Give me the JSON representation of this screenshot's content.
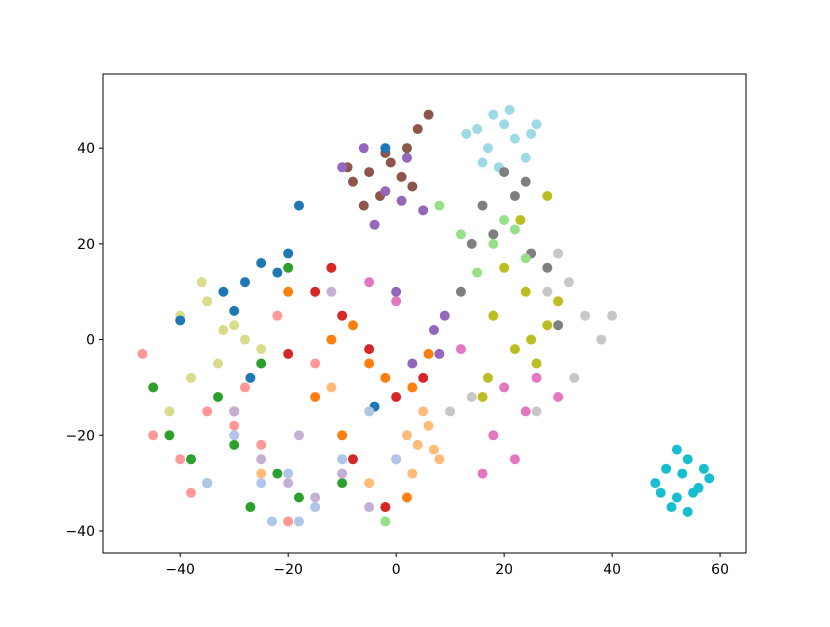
{
  "chart_data": {
    "type": "scatter",
    "xlim": [
      -54.3,
      64.8
    ],
    "ylim": [
      -44.6,
      55.5
    ],
    "xticks": [
      {
        "value": -40,
        "label": "−40"
      },
      {
        "value": -20,
        "label": "−20"
      },
      0,
      20,
      40,
      60
    ],
    "yticks": [
      {
        "value": -40,
        "label": "−40"
      },
      {
        "value": -20,
        "label": "−20"
      },
      0,
      20,
      40
    ],
    "series": [
      {
        "color": "#8c564b",
        "x": [
          -8,
          -5,
          -3,
          -1,
          1,
          3,
          -6,
          -2,
          4,
          6,
          2,
          -9
        ],
        "y": [
          33,
          35,
          30,
          37,
          34,
          32,
          28,
          39,
          44,
          47,
          40,
          36
        ]
      },
      {
        "color": "#9edae5",
        "x": [
          15,
          18,
          20,
          22,
          25,
          17,
          21,
          24,
          19,
          13,
          26,
          16
        ],
        "y": [
          44,
          47,
          45,
          42,
          43,
          40,
          48,
          38,
          36,
          43,
          45,
          37
        ]
      },
      {
        "color": "#17becf",
        "x": [
          48,
          50,
          52,
          54,
          56,
          58,
          51,
          53,
          55,
          49,
          57,
          52,
          54
        ],
        "y": [
          -30,
          -27,
          -33,
          -25,
          -31,
          -29,
          -35,
          -28,
          -32,
          -32,
          -27,
          -23,
          -36
        ]
      },
      {
        "color": "#9467bd",
        "x": [
          -10,
          -6,
          -2,
          2,
          5,
          8,
          0,
          3,
          7,
          -4,
          9,
          1
        ],
        "y": [
          36,
          40,
          31,
          38,
          27,
          -3,
          10,
          -5,
          2,
          24,
          5,
          29
        ]
      },
      {
        "color": "#bcbd22",
        "x": [
          18,
          22,
          25,
          28,
          24,
          20,
          26,
          30,
          17,
          23,
          16,
          28
        ],
        "y": [
          5,
          -2,
          0,
          3,
          10,
          15,
          -5,
          8,
          -8,
          25,
          -12,
          30
        ]
      },
      {
        "color": "#7f7f7f",
        "x": [
          14,
          18,
          22,
          25,
          28,
          20,
          16,
          24,
          30,
          12
        ],
        "y": [
          20,
          22,
          30,
          18,
          15,
          35,
          28,
          33,
          3,
          10
        ]
      },
      {
        "color": "#c7c7c7",
        "x": [
          28,
          32,
          35,
          30,
          38,
          10,
          14,
          26,
          40,
          33
        ],
        "y": [
          10,
          12,
          5,
          18,
          0,
          -15,
          -12,
          -15,
          5,
          -8
        ]
      },
      {
        "color": "#e377c2",
        "x": [
          18,
          22,
          24,
          20,
          26,
          30,
          12,
          0,
          -5,
          16
        ],
        "y": [
          -20,
          -25,
          -15,
          -10,
          -8,
          -12,
          -2,
          8,
          12,
          -28
        ]
      },
      {
        "color": "#98df8a",
        "x": [
          18,
          20,
          24,
          12,
          8,
          -2,
          22,
          15
        ],
        "y": [
          20,
          25,
          17,
          22,
          28,
          -38,
          23,
          14
        ]
      },
      {
        "color": "#dbdb8d",
        "x": [
          -40,
          -35,
          -32,
          -28,
          -38,
          -30,
          -25,
          -36,
          -33,
          -42
        ],
        "y": [
          5,
          8,
          2,
          0,
          -8,
          3,
          -2,
          12,
          -5,
          -15
        ]
      },
      {
        "color": "#1f77b4",
        "x": [
          -28,
          -25,
          -22,
          -20,
          -32,
          -30,
          -18,
          -40,
          -27,
          -4,
          -2
        ],
        "y": [
          12,
          16,
          14,
          18,
          10,
          6,
          28,
          4,
          -8,
          -14,
          40
        ]
      },
      {
        "color": "#2ca02c",
        "x": [
          -38,
          -35,
          -30,
          -42,
          -27,
          -22,
          -18,
          -33,
          -10,
          -45,
          -20,
          -25
        ],
        "y": [
          -25,
          -30,
          -22,
          -20,
          -35,
          -28,
          -33,
          -12,
          -30,
          -10,
          15,
          -5
        ]
      },
      {
        "color": "#ff7f0e",
        "x": [
          -12,
          -8,
          -5,
          -2,
          3,
          6,
          -15,
          -10,
          2,
          -20,
          0
        ],
        "y": [
          0,
          3,
          -5,
          -8,
          -10,
          -3,
          -12,
          -20,
          -33,
          10,
          -25
        ]
      },
      {
        "color": "#ffbb78",
        "x": [
          2,
          4,
          6,
          8,
          3,
          5,
          7,
          -5,
          -12,
          -25
        ],
        "y": [
          -20,
          -22,
          -18,
          -25,
          -28,
          -15,
          -23,
          -30,
          -10,
          -28
        ]
      },
      {
        "color": "#ff9896",
        "x": [
          -45,
          -40,
          -35,
          -30,
          -25,
          -20,
          -15,
          -38,
          -28,
          -47,
          -22
        ],
        "y": [
          -20,
          -25,
          -15,
          -18,
          -22,
          -38,
          -5,
          -32,
          -10,
          -3,
          5
        ]
      },
      {
        "color": "#aec7e8",
        "x": [
          -25,
          -20,
          -15,
          -10,
          -18,
          -23,
          -30,
          -5,
          0,
          -35
        ],
        "y": [
          -30,
          -28,
          -35,
          -25,
          -38,
          -38,
          -20,
          -15,
          -25,
          -30
        ]
      },
      {
        "color": "#d62728",
        "x": [
          -10,
          -5,
          -15,
          -20,
          -8,
          0,
          -12,
          -30,
          -2,
          5
        ],
        "y": [
          5,
          -2,
          10,
          -3,
          -25,
          -12,
          15,
          -15,
          -35,
          -8
        ]
      },
      {
        "color": "#c5b0d5",
        "x": [
          -20,
          -15,
          -25,
          -10,
          -18,
          -5,
          -30,
          -12
        ],
        "y": [
          -30,
          -33,
          -25,
          -28,
          -20,
          -35,
          -15,
          10
        ]
      }
    ]
  }
}
